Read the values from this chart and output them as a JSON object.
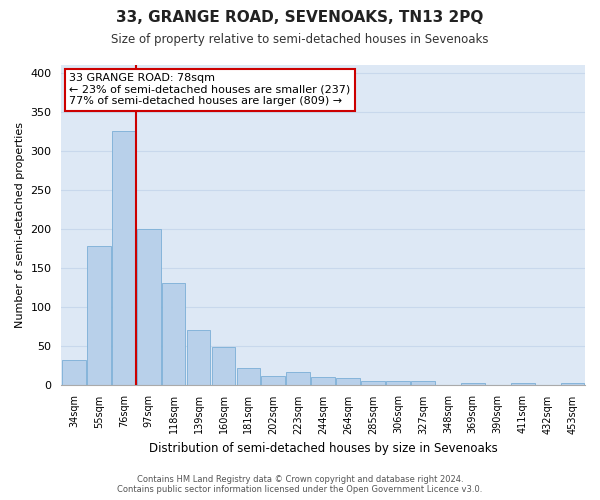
{
  "title": "33, GRANGE ROAD, SEVENOAKS, TN13 2PQ",
  "subtitle": "Size of property relative to semi-detached houses in Sevenoaks",
  "xlabel": "Distribution of semi-detached houses by size in Sevenoaks",
  "ylabel": "Number of semi-detached properties",
  "categories": [
    "34sqm",
    "55sqm",
    "76sqm",
    "97sqm",
    "118sqm",
    "139sqm",
    "160sqm",
    "181sqm",
    "202sqm",
    "223sqm",
    "244sqm",
    "264sqm",
    "285sqm",
    "306sqm",
    "327sqm",
    "348sqm",
    "369sqm",
    "390sqm",
    "411sqm",
    "432sqm",
    "453sqm"
  ],
  "values": [
    32,
    178,
    325,
    200,
    130,
    70,
    48,
    21,
    11,
    16,
    10,
    9,
    5,
    4,
    4,
    0,
    2,
    0,
    2,
    0,
    2
  ],
  "bar_color": "#b8d0ea",
  "bar_edge_color": "#7aaed6",
  "fig_background": "#ffffff",
  "plot_background": "#dde8f5",
  "grid_color": "#c8d8ec",
  "property_bin_index": 2,
  "annotation_title": "33 GRANGE ROAD: 78sqm",
  "annotation_line1": "← 23% of semi-detached houses are smaller (237)",
  "annotation_line2": "77% of semi-detached houses are larger (809) →",
  "vline_color": "#cc0000",
  "annotation_box_edge": "#cc0000",
  "ylim": [
    0,
    410
  ],
  "yticks": [
    0,
    50,
    100,
    150,
    200,
    250,
    300,
    350,
    400
  ],
  "footer1": "Contains HM Land Registry data © Crown copyright and database right 2024.",
  "footer2": "Contains public sector information licensed under the Open Government Licence v3.0."
}
